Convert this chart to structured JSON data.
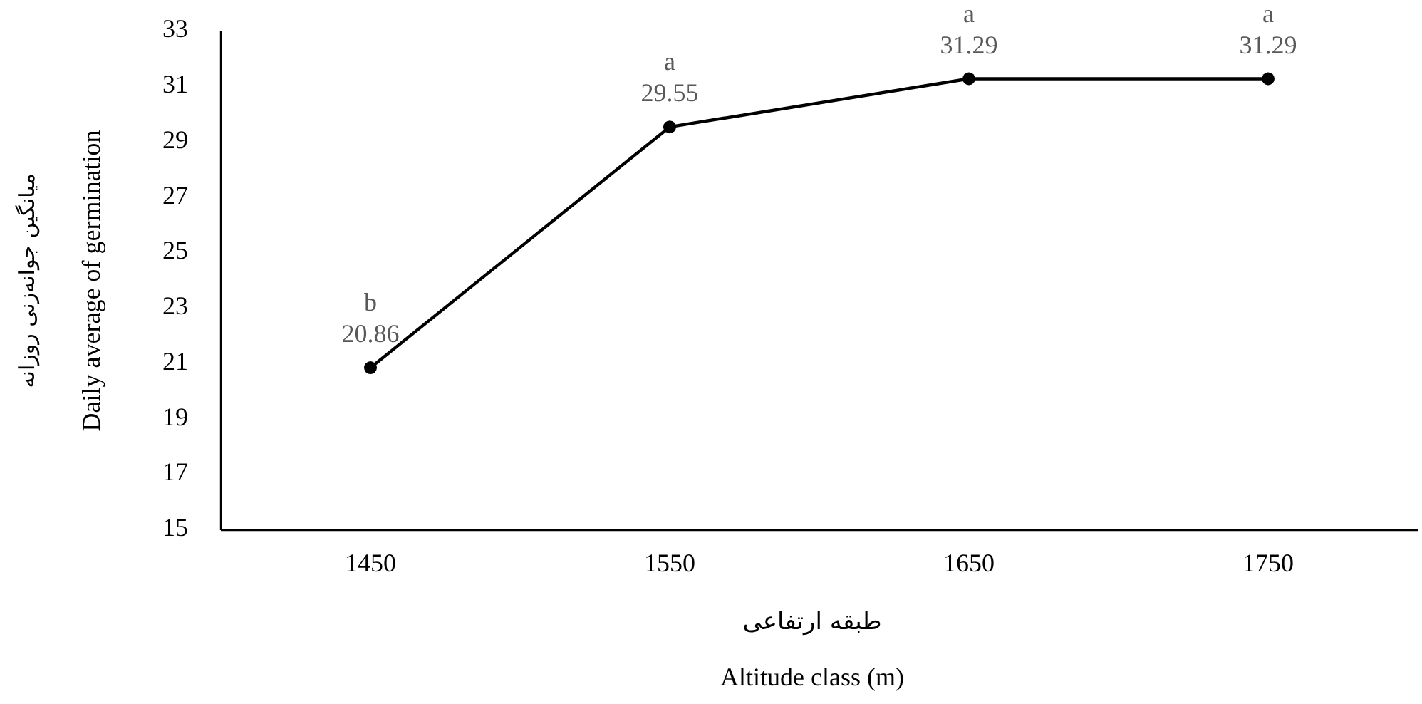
{
  "chart_data": {
    "type": "line",
    "categories": [
      "1450",
      "1550",
      "1650",
      "1750"
    ],
    "values": [
      20.86,
      29.55,
      31.29,
      31.29
    ],
    "color": "#000000",
    "marker": "circle",
    "line_style": "solid",
    "ylim": [
      15,
      33
    ],
    "yticks": [
      15,
      17,
      19,
      21,
      23,
      25,
      27,
      29,
      31,
      33
    ],
    "xlabel": "طبقه ارتفاعی",
    "ylabel": "Daily average of germination",
    "data_labels": true,
    "annotations": [
      {
        "text": "b",
        "x": "1450",
        "y": 20.86
      },
      {
        "text": "a",
        "x": "1550",
        "y": 29.55
      },
      {
        "text": "a",
        "x": "1650",
        "y": 31.29
      },
      {
        "text": "a",
        "x": "1750",
        "y": 31.29
      },
      "Altitude class (m)",
      "میانگین جوانه‌زنی روزانه"
    ]
  }
}
